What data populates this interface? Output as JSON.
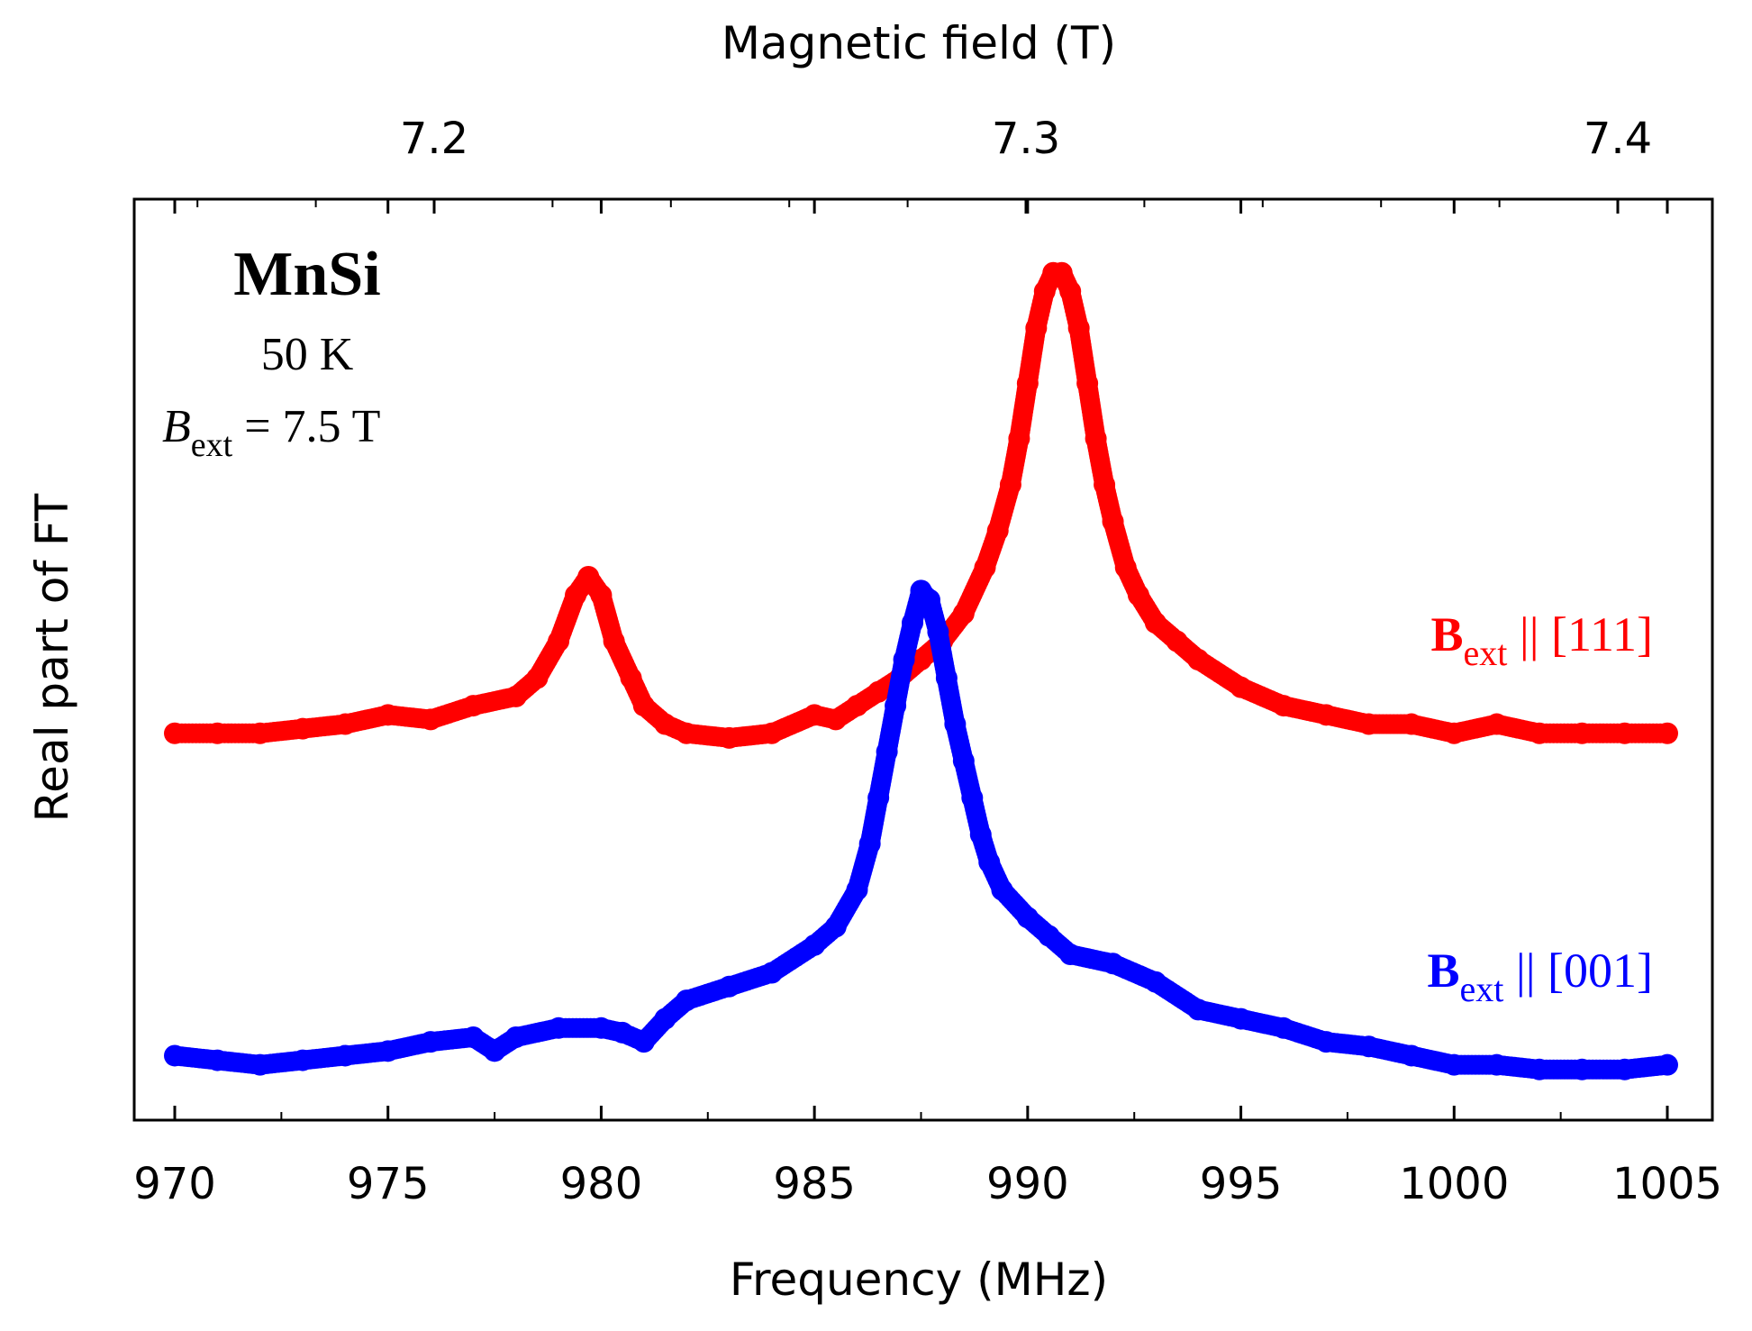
{
  "chart_data": {
    "type": "scatter",
    "title": "",
    "xlabel": "Frequency (MHz)",
    "ylabel": "Real part of FT",
    "top_xlabel": "Magnetic field (T)",
    "xlim": [
      969,
      1006
    ],
    "ylim": [
      0,
      1
    ],
    "x_ticks": [
      970,
      975,
      980,
      985,
      990,
      995,
      1000,
      1005
    ],
    "x_tick_labels": [
      "970",
      "975",
      "980",
      "985",
      "990",
      "995",
      "1000",
      "1005"
    ],
    "top_ticks": [
      7.2,
      7.3,
      7.4
    ],
    "top_tick_labels": [
      "7.2",
      "7.3",
      "7.4"
    ],
    "annotation": {
      "sample": "MnSi",
      "temperature": "50 K",
      "field_symbol": "B",
      "field_subscript": "ext",
      "field_value": " = 7.5 T"
    },
    "series": [
      {
        "name": "Bext || [111]",
        "label_main": "B",
        "label_sub": "ext",
        "label_rest": " || [111]",
        "color": "#ff0000",
        "x": [
          970,
          971,
          972,
          973,
          974,
          975,
          976,
          977,
          978,
          978.5,
          979,
          979.4,
          979.7,
          980,
          980.3,
          980.7,
          981,
          981.5,
          982,
          983,
          984,
          985,
          985.5,
          986,
          986.5,
          987,
          987.5,
          988,
          988.5,
          989,
          989.3,
          989.6,
          989.8,
          990,
          990.2,
          990.4,
          990.6,
          990.8,
          991,
          991.2,
          991.4,
          991.6,
          991.8,
          992,
          992.3,
          992.6,
          993,
          993.5,
          994,
          995,
          996,
          997,
          998,
          999,
          1000,
          1001,
          1002,
          1003,
          1004,
          1005
        ],
        "y": [
          0.42,
          0.42,
          0.42,
          0.425,
          0.43,
          0.44,
          0.435,
          0.45,
          0.46,
          0.48,
          0.52,
          0.57,
          0.59,
          0.57,
          0.52,
          0.48,
          0.45,
          0.43,
          0.42,
          0.415,
          0.42,
          0.44,
          0.435,
          0.45,
          0.465,
          0.48,
          0.5,
          0.52,
          0.55,
          0.6,
          0.64,
          0.69,
          0.74,
          0.8,
          0.86,
          0.9,
          0.92,
          0.92,
          0.9,
          0.86,
          0.8,
          0.74,
          0.69,
          0.65,
          0.6,
          0.57,
          0.54,
          0.52,
          0.5,
          0.47,
          0.45,
          0.44,
          0.43,
          0.43,
          0.42,
          0.43,
          0.42,
          0.42,
          0.42,
          0.42
        ]
      },
      {
        "name": "Bext || [001]",
        "label_main": "B",
        "label_sub": "ext",
        "label_rest": " || [001]",
        "color": "#0000ff",
        "x": [
          970,
          971,
          972,
          973,
          974,
          975,
          976,
          977,
          977.5,
          978,
          979,
          980,
          980.5,
          981,
          981.5,
          982,
          983,
          984,
          985,
          985.5,
          986,
          986.3,
          986.5,
          986.7,
          986.9,
          987.1,
          987.3,
          987.5,
          987.7,
          987.9,
          988.1,
          988.3,
          988.5,
          988.7,
          988.9,
          989.1,
          989.4,
          990,
          990.5,
          991,
          992,
          993,
          994,
          995,
          996,
          997,
          998,
          999,
          1000,
          1001,
          1002,
          1003,
          1004,
          1005
        ],
        "y": [
          0.07,
          0.065,
          0.06,
          0.065,
          0.07,
          0.075,
          0.085,
          0.09,
          0.075,
          0.09,
          0.1,
          0.1,
          0.095,
          0.085,
          0.11,
          0.13,
          0.145,
          0.16,
          0.19,
          0.21,
          0.25,
          0.3,
          0.35,
          0.4,
          0.45,
          0.5,
          0.54,
          0.575,
          0.565,
          0.53,
          0.48,
          0.43,
          0.39,
          0.35,
          0.31,
          0.28,
          0.25,
          0.22,
          0.2,
          0.18,
          0.17,
          0.15,
          0.12,
          0.11,
          0.1,
          0.085,
          0.08,
          0.07,
          0.06,
          0.06,
          0.055,
          0.055,
          0.055,
          0.06
        ]
      }
    ]
  }
}
